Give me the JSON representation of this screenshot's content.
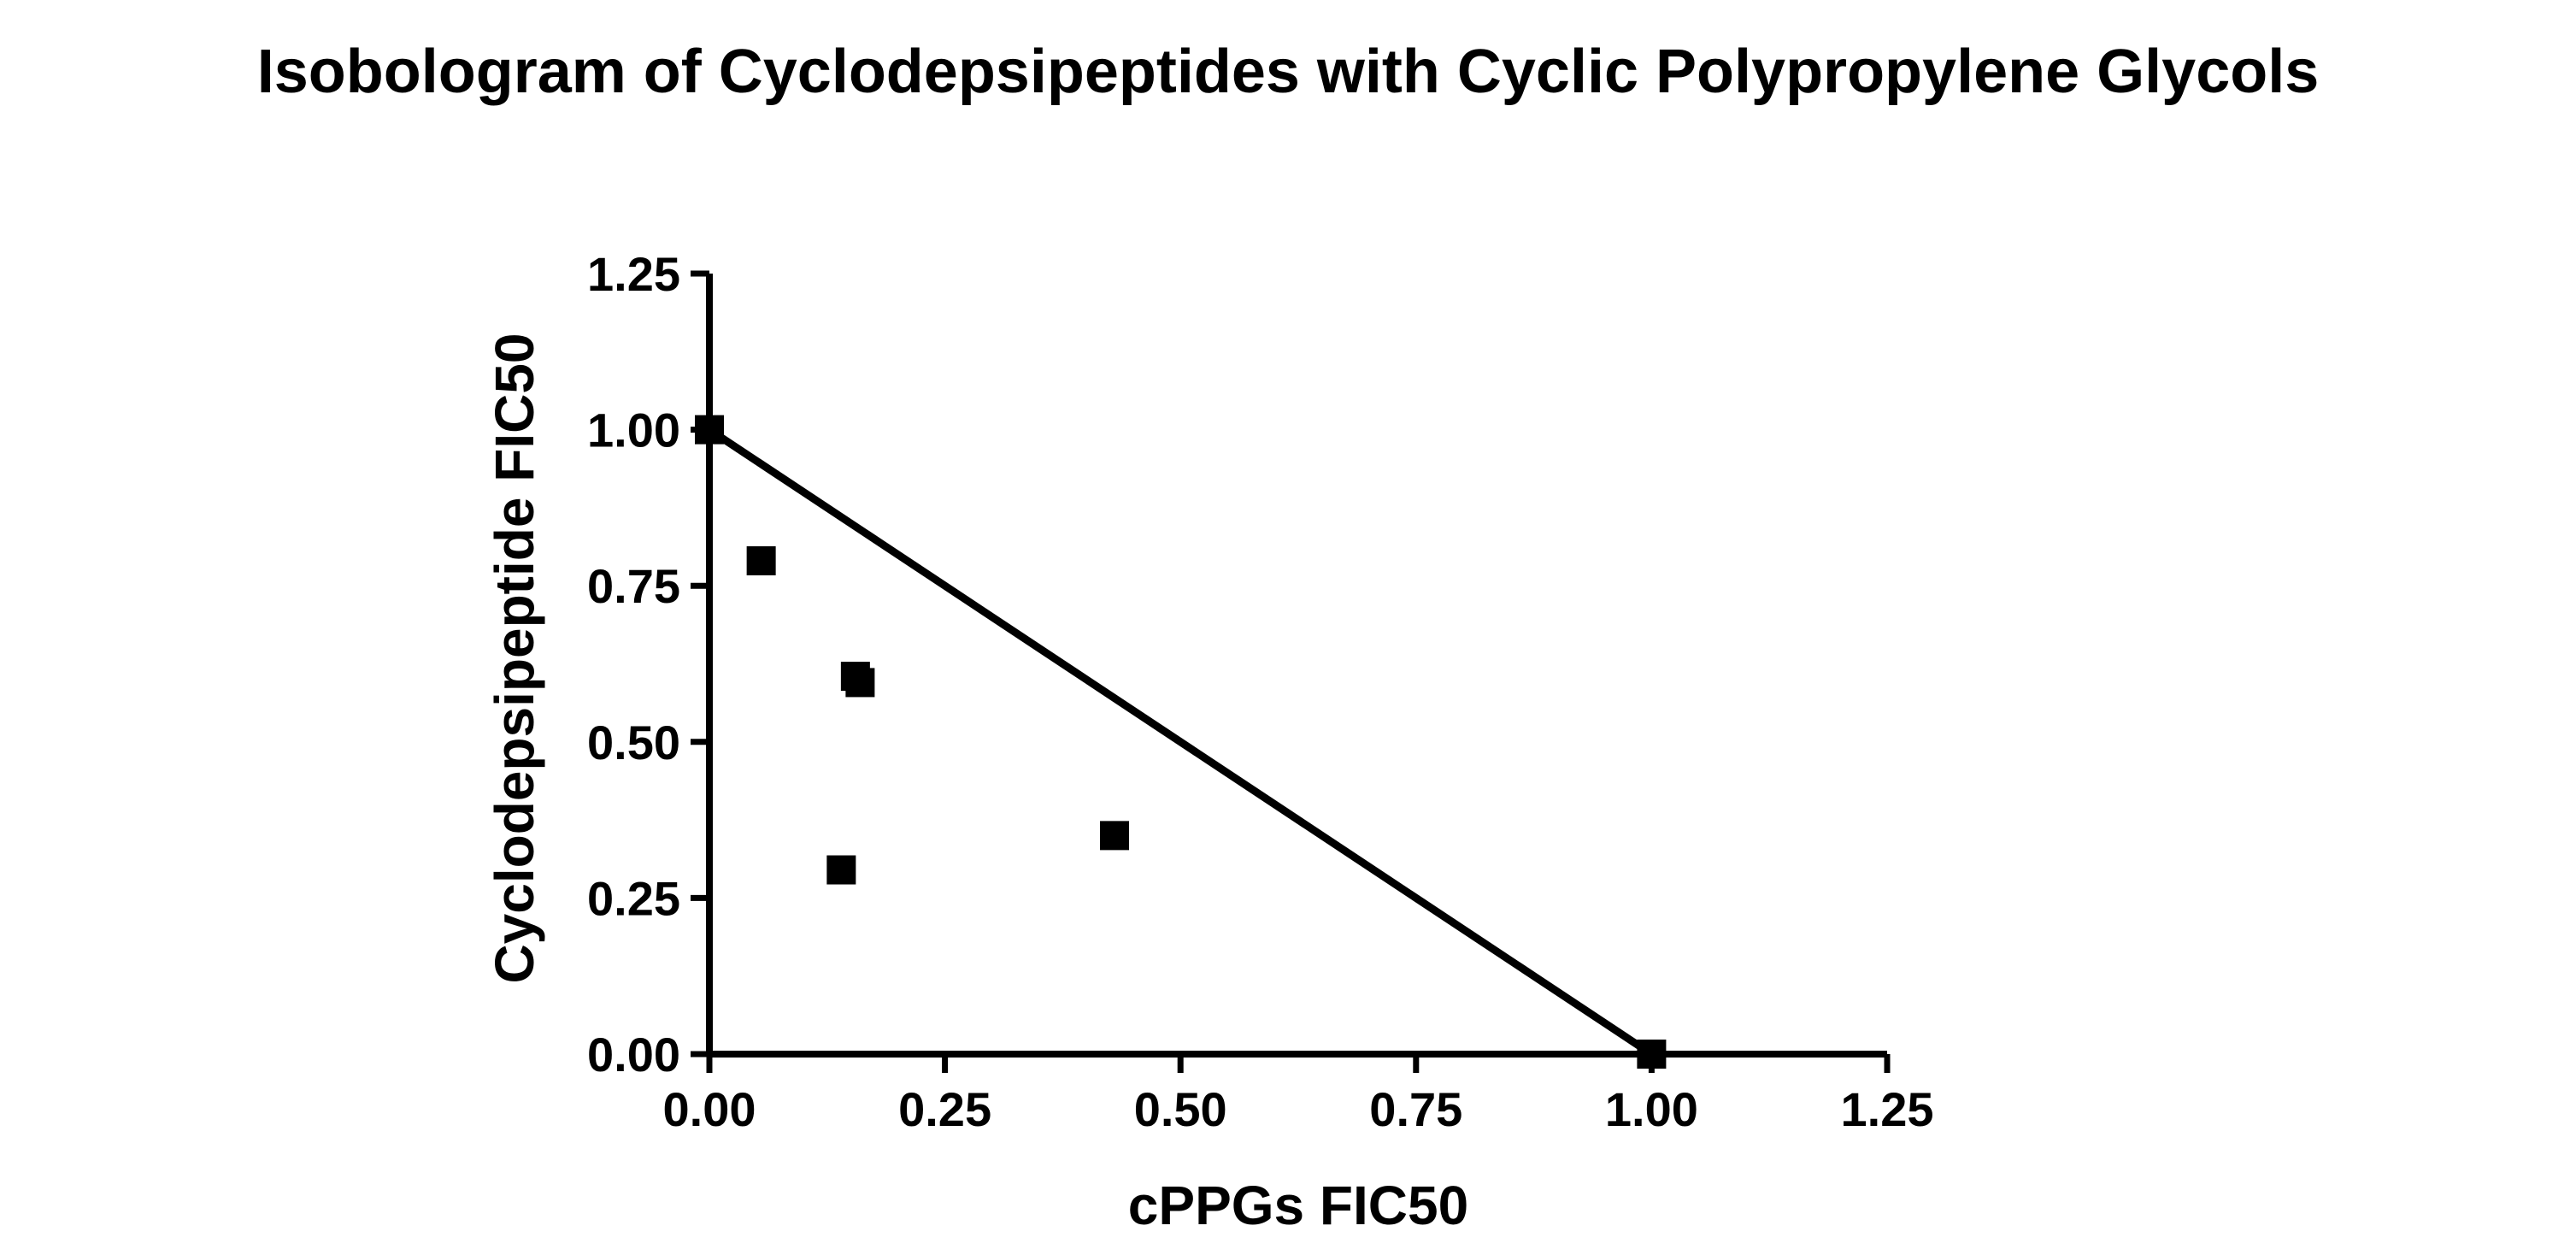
{
  "chart_data": {
    "type": "scatter",
    "title": "Isobologram of Cyclodepsipeptides with Cyclic Polypropylene Glycols",
    "xlabel": "cPPGs FIC50",
    "ylabel": "Cyclodepsipeptide FIC50",
    "xlim": [
      0,
      1.25
    ],
    "ylim": [
      0,
      1.25
    ],
    "x_ticks": [
      "0.00",
      "0.25",
      "0.50",
      "0.75",
      "1.00",
      "1.25"
    ],
    "y_ticks": [
      "0.00",
      "0.25",
      "0.50",
      "0.75",
      "1.00",
      "1.25"
    ],
    "grid": false,
    "legend": "none",
    "additivity_line": {
      "x": [
        0.0,
        1.0
      ],
      "y": [
        1.0,
        0.0
      ]
    },
    "points": {
      "x": [
        0.0,
        0.055,
        0.155,
        0.16,
        0.14,
        0.43,
        1.0
      ],
      "y": [
        1.0,
        0.79,
        0.605,
        0.595,
        0.295,
        0.35,
        0.0
      ]
    },
    "marker": "square",
    "color": "#000000"
  }
}
